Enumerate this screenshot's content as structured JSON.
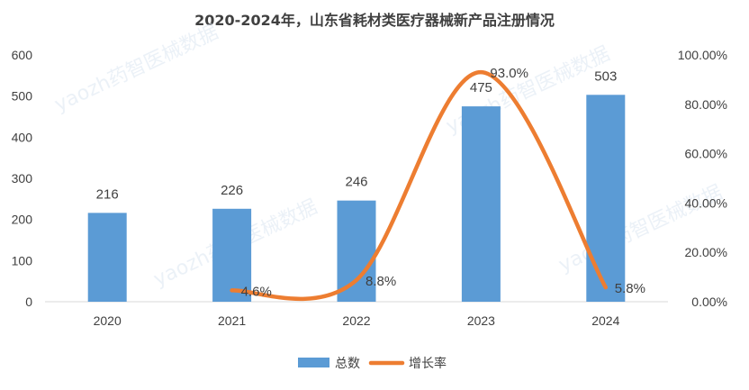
{
  "chart_data": {
    "type": "bar",
    "title": "2020-2024年，山东省耗材类医疗器械新产品注册情况",
    "categories": [
      "2020",
      "2021",
      "2022",
      "2023",
      "2024"
    ],
    "series": [
      {
        "name": "总数",
        "type": "bar",
        "axis": "left",
        "color": "#5b9bd5",
        "values": [
          216,
          226,
          246,
          475,
          503
        ],
        "labels": [
          "216",
          "226",
          "246",
          "475",
          "503"
        ]
      },
      {
        "name": "增长率",
        "type": "line",
        "axis": "right",
        "color": "#ed7d31",
        "values": [
          null,
          4.6,
          8.8,
          93.0,
          5.8
        ],
        "labels": [
          "",
          "4.6%",
          "8.8%",
          "93.0%",
          "5.8%"
        ]
      }
    ],
    "ylim": [
      0,
      600
    ],
    "y_ticks": [
      "0",
      "100",
      "200",
      "300",
      "400",
      "500",
      "600"
    ],
    "y2lim": [
      0,
      100
    ],
    "y2_ticks": [
      "0.00%",
      "20.00%",
      "40.00%",
      "60.00%",
      "80.00%",
      "100.00%"
    ],
    "xlabel": "",
    "ylabel": "",
    "grid": false,
    "legend": "bottom"
  },
  "watermark": "yaozh药智医械数据"
}
